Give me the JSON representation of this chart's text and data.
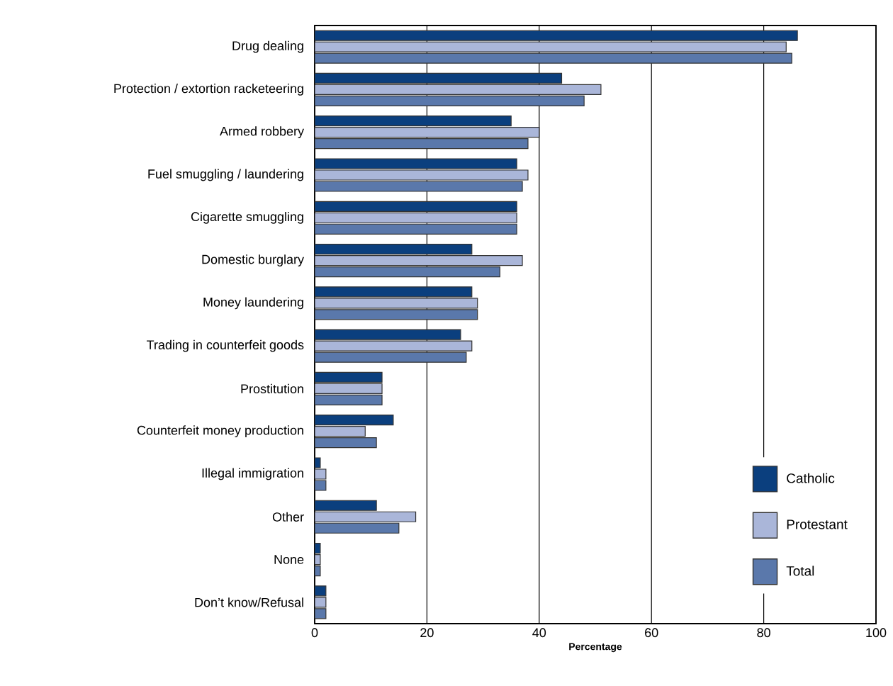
{
  "chart_data": {
    "type": "bar",
    "orientation": "horizontal",
    "xlabel": "Percentage",
    "categories": [
      "Drug dealing",
      "Protection / extortion racketeering",
      "Armed robbery",
      "Fuel smuggling / laundering",
      "Cigarette smuggling",
      "Domestic burglary",
      "Money laundering",
      "Trading in counterfeit goods",
      "Prostitution",
      "Counterfeit money production",
      "Illegal immigration",
      "Other",
      "None",
      "Don’t know/Refusal"
    ],
    "series": [
      {
        "name": "Catholic",
        "color": "#0b3f7e",
        "values": [
          86,
          44,
          35,
          36,
          36,
          28,
          28,
          26,
          12,
          14,
          1,
          11,
          1,
          2
        ]
      },
      {
        "name": "Protestant",
        "color": "#aab6d9",
        "values": [
          84,
          51,
          40,
          38,
          36,
          37,
          29,
          28,
          12,
          9,
          2,
          18,
          1,
          2
        ]
      },
      {
        "name": "Total",
        "color": "#5a78ab",
        "values": [
          85,
          48,
          38,
          37,
          36,
          33,
          29,
          27,
          12,
          11,
          2,
          15,
          1,
          2
        ]
      }
    ],
    "xlim": [
      0,
      100
    ],
    "xticks": [
      0,
      20,
      40,
      60,
      80,
      100
    ],
    "grid": "x",
    "legend": "bottom right"
  }
}
